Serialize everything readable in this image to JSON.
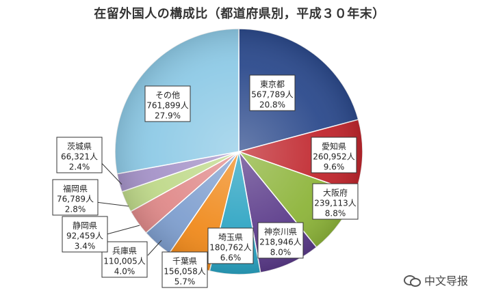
{
  "title": "在留外国人の構成比（都道府県別，平成３０年末）",
  "watermark": {
    "text": "中文导报",
    "icon": "wechat-icon"
  },
  "chart_data": {
    "type": "pie",
    "start_angle_deg": 0,
    "direction": "clockwise",
    "slices": [
      {
        "name": "東京都",
        "count": "567,789人",
        "pct": "20.8%",
        "value": 20.8,
        "color": "#2C4A8C"
      },
      {
        "name": "愛知県",
        "count": "260,952人",
        "pct": "9.6%",
        "value": 9.6,
        "color": "#C0262D"
      },
      {
        "name": "大阪府",
        "count": "239,113人",
        "pct": "8.8%",
        "value": 8.8,
        "color": "#8DB43A"
      },
      {
        "name": "神奈川県",
        "count": "218,946人",
        "pct": "8.0%",
        "value": 8.0,
        "color": "#5B3B8A"
      },
      {
        "name": "埼玉県",
        "count": "180,762人",
        "pct": "6.6%",
        "value": 6.6,
        "color": "#2AA3C2"
      },
      {
        "name": "千葉県",
        "count": "156,058人",
        "pct": "5.7%",
        "value": 5.7,
        "color": "#F08A1C"
      },
      {
        "name": "兵庫県",
        "count": "110,005人",
        "pct": "4.0%",
        "value": 4.0,
        "color": "#7F9FCF"
      },
      {
        "name": "静岡県",
        "count": "92,459人",
        "pct": "3.4%",
        "value": 3.4,
        "color": "#E08A8A"
      },
      {
        "name": "福岡県",
        "count": "76,789人",
        "pct": "2.8%",
        "value": 2.8,
        "color": "#BFD98A"
      },
      {
        "name": "茨城県",
        "count": "66,321人",
        "pct": "2.4%",
        "value": 2.4,
        "color": "#A593C8"
      },
      {
        "name": "その他",
        "count": "761,899人",
        "pct": "27.9%",
        "value": 27.9,
        "color": "#8ECAE6"
      }
    ]
  }
}
